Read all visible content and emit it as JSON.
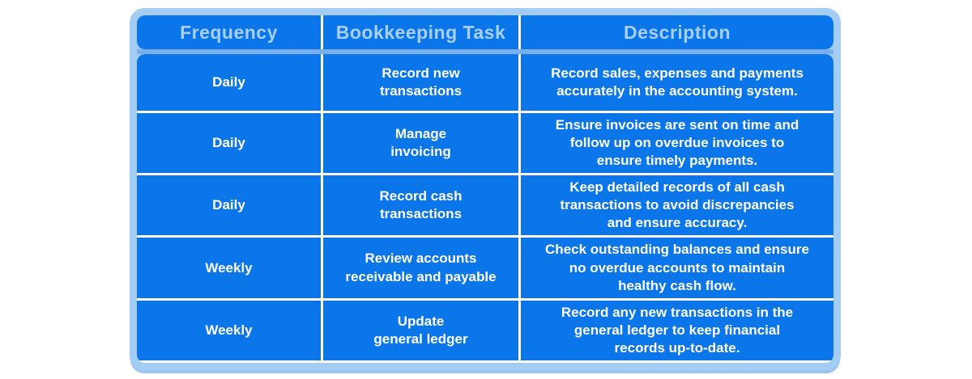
{
  "table": {
    "headers": {
      "frequency": "Frequency",
      "task": "Bookkeeping Task",
      "description": "Description"
    },
    "rows": [
      {
        "frequency": "Daily",
        "task": "Record new\ntransactions",
        "description": "Record sales, expenses and payments\naccurately in the accounting system."
      },
      {
        "frequency": "Daily",
        "task": "Manage\ninvoicing",
        "description": "Ensure invoices are sent on time and\nfollow up on overdue invoices to\nensure timely payments."
      },
      {
        "frequency": "Daily",
        "task": "Record cash\ntransactions",
        "description": "Keep detailed records of all cash\ntransactions to avoid discrepancies\nand ensure accuracy."
      },
      {
        "frequency": "Weekly",
        "task": "Review accounts\nreceivable and payable",
        "description": "Check outstanding balances and ensure\nno overdue accounts to maintain\nhealthy cash flow."
      },
      {
        "frequency": "Weekly",
        "task": "Update\ngeneral ledger",
        "description": "Record any new transactions in the\ngeneral ledger to keep financial\nrecords up-to-date."
      }
    ],
    "colors": {
      "cell_blue": "#0b75ea",
      "frame_light_blue": "#a4cdf6",
      "header_text": "#a8cff5",
      "band_blue": "#79aff2",
      "separator_white": "#ffffff"
    }
  }
}
